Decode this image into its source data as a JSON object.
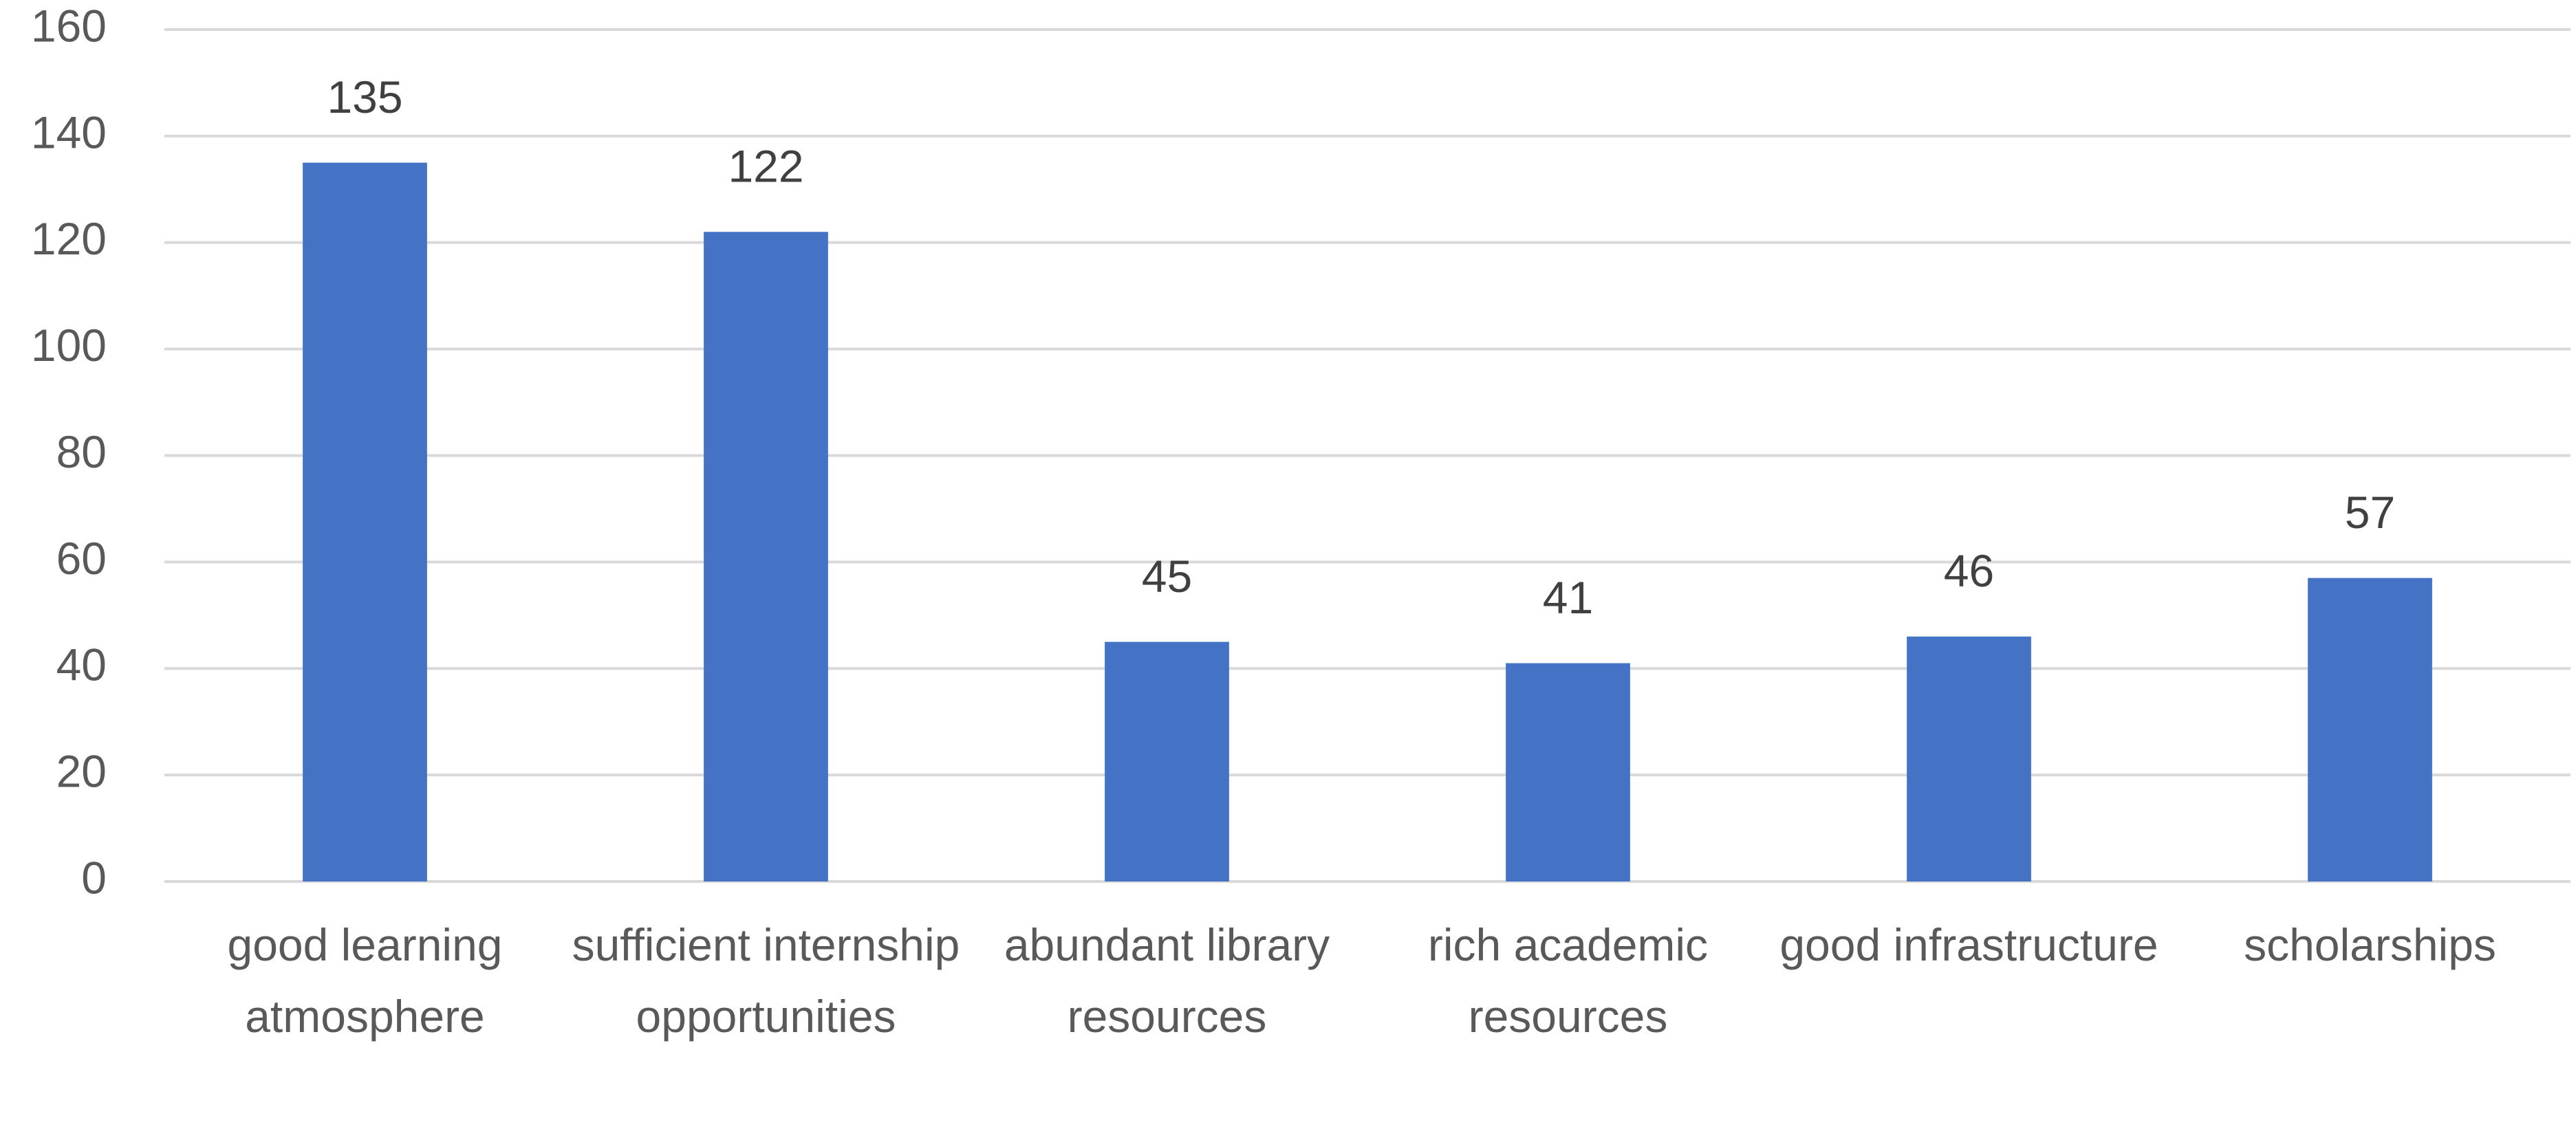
{
  "chart_data": {
    "type": "bar",
    "categories": [
      "good learning atmosphere",
      "sufficient internship opportunities",
      "abundant library resources",
      "rich academic resources",
      "good infrastructure",
      "scholarships"
    ],
    "values": [
      135,
      122,
      45,
      41,
      46,
      57
    ],
    "color": "#4472c4",
    "ylim": [
      0,
      160
    ],
    "yticks": [
      0,
      20,
      40,
      60,
      80,
      100,
      120,
      140,
      160
    ],
    "grid": true
  }
}
